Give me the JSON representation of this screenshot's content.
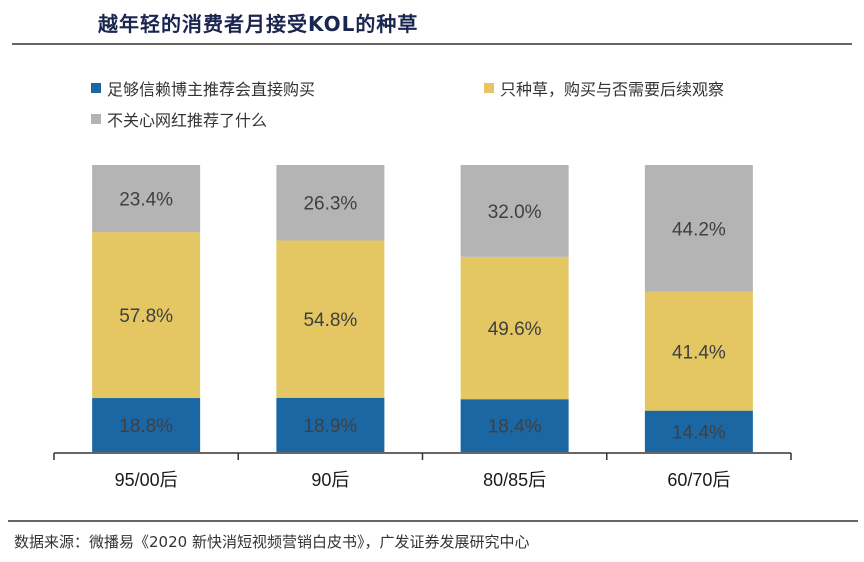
{
  "header": {
    "title": "越年轻的消费者月接受KOL的种草"
  },
  "source": "数据来源：微播易《2020 新快消短视频营销白皮书》，广发证券发展研究中心",
  "colors": {
    "blue": "#1B67A4",
    "yellow": "#E4C663",
    "gray": "#B4B4B4"
  },
  "chart_data": {
    "type": "bar",
    "stacked": true,
    "title": "越年轻的消费者月接受KOL的种草",
    "categories": [
      "95/00后",
      "90后",
      "80/85后",
      "60/70后"
    ],
    "series": [
      {
        "name": "足够信赖博主推荐会直接购买",
        "color": "#1B67A4",
        "values": [
          18.8,
          18.9,
          18.4,
          14.4
        ],
        "labels": [
          "18.8%",
          "18.9%",
          "18.4%",
          "14.4%"
        ]
      },
      {
        "name": "只种草，购买与否需要后续观察",
        "color": "#E4C663",
        "values": [
          57.8,
          54.8,
          49.6,
          41.4
        ],
        "labels": [
          "57.8%",
          "54.8%",
          "49.6%",
          "41.4%"
        ]
      },
      {
        "name": "不关心网红推荐了什么",
        "color": "#B4B4B4",
        "values": [
          23.4,
          26.3,
          32.0,
          44.2
        ],
        "labels": [
          "23.4%",
          "26.3%",
          "32.0%",
          "44.2%"
        ]
      }
    ],
    "ylim": [
      0,
      100
    ],
    "xlabel": "",
    "ylabel": "",
    "grid": false,
    "legend": "top"
  }
}
